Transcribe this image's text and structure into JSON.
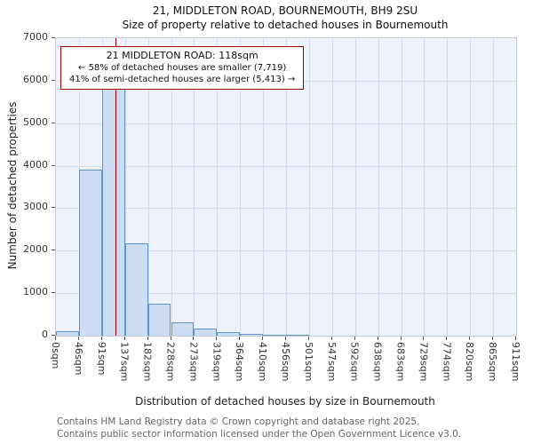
{
  "chart_data": {
    "type": "bar",
    "title": "21, MIDDLETON ROAD, BOURNEMOUTH, BH9 2SU",
    "subtitle": "Size of property relative to detached houses in Bournemouth",
    "xlabel": "Distribution of detached houses by size in Bournemouth",
    "ylabel": "Number of detached properties",
    "ylim": [
      0,
      7000
    ],
    "ytick_step": 1000,
    "grid": true,
    "legend": false,
    "xtick_rotation": 90,
    "x_max": 911,
    "categories": [
      "0sqm",
      "46sqm",
      "91sqm",
      "137sqm",
      "182sqm",
      "228sqm",
      "273sqm",
      "319sqm",
      "364sqm",
      "410sqm",
      "456sqm",
      "501sqm",
      "547sqm",
      "592sqm",
      "638sqm",
      "683sqm",
      "729sqm",
      "774sqm",
      "820sqm",
      "865sqm",
      "911sqm"
    ],
    "values": [
      100,
      3900,
      5800,
      2175,
      750,
      310,
      160,
      80,
      40,
      25,
      10,
      0,
      0,
      0,
      0,
      0,
      0,
      0,
      0,
      0
    ],
    "marker": {
      "value": 118
    },
    "annotation": {
      "line1": "21 MIDDLETON ROAD: 118sqm",
      "line2": "← 58% of detached houses are smaller (7,719)",
      "line3": "41% of semi-detached houses are larger (5,413) →"
    },
    "colors": {
      "bar_fill": "#ccdcf2",
      "bar_edge": "#6292ca",
      "marker_line": "#a00000",
      "annotation_border": "#a00000",
      "grid": "#d5dbe8",
      "plot_bg": "#eef2fb",
      "plot_border": "#c3cad8"
    }
  },
  "footer": {
    "line1": "Contains HM Land Registry data © Crown copyright and database right 2025.",
    "line2": "Contains public sector information licensed under the Open Government Licence v3.0."
  }
}
